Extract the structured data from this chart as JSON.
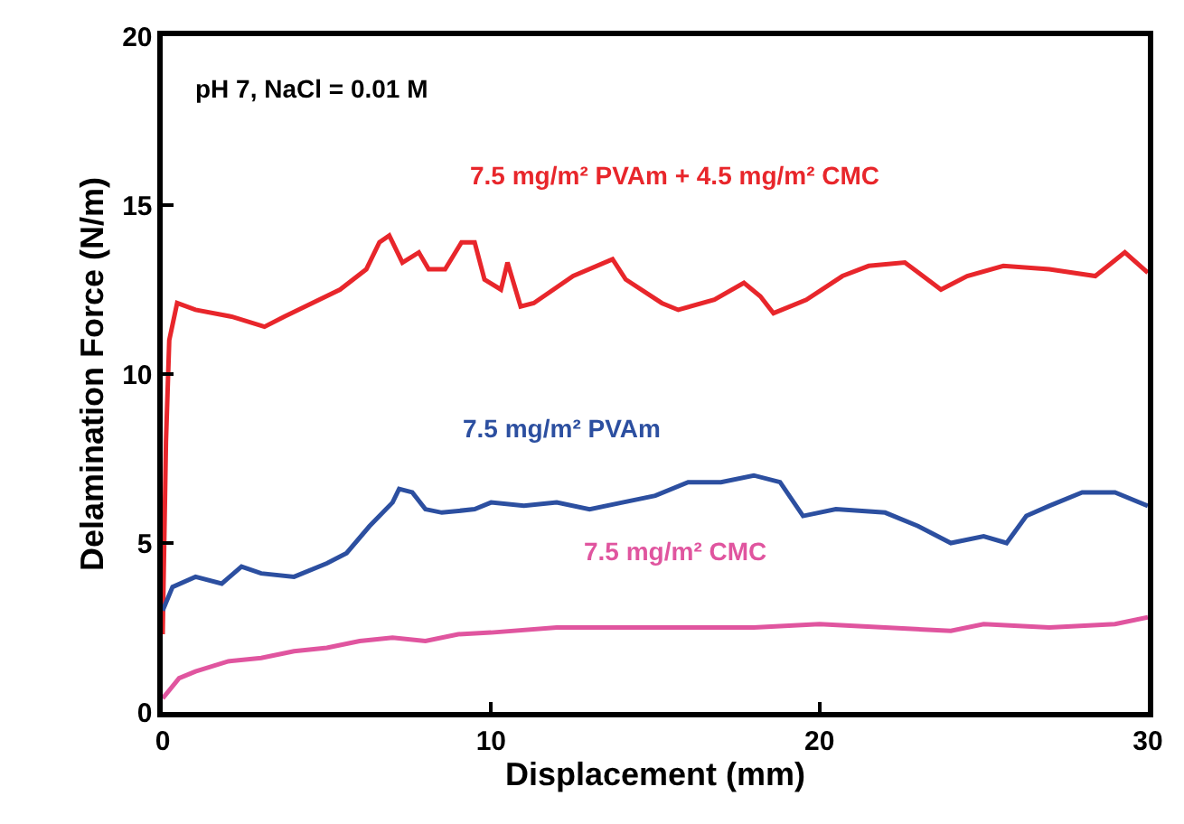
{
  "chart_data": {
    "type": "line",
    "xlabel": "Displacement (mm)",
    "ylabel": "Delamination Force (N/m)",
    "xlim": [
      0,
      30
    ],
    "xticks": [
      0,
      10,
      20,
      30
    ],
    "ylim": [
      0,
      20
    ],
    "yticks": [
      0,
      5,
      10,
      15,
      20
    ],
    "legend": false,
    "marker": "none",
    "line_style": "solid",
    "annotations": [
      "pH 7, NaCl = 0.01 M"
    ],
    "series": [
      {
        "name": "7.5 mg/m² PVAm + 4.5 mg/m² CMC",
        "color": "#e8262b",
        "x": [
          0,
          0.1,
          0.2,
          0.44,
          1,
          2.1,
          3.1,
          3.7,
          5.4,
          6.2,
          6.6,
          6.9,
          7.3,
          7.8,
          8.1,
          8.6,
          9.1,
          9.5,
          9.8,
          10.3,
          10.5,
          10.9,
          11.3,
          12.5,
          13.7,
          14.1,
          15.2,
          15.7,
          16.8,
          17.7,
          18.2,
          18.6,
          19.6,
          20.7,
          21.5,
          22.6,
          23.7,
          24.5,
          25.6,
          27,
          28.4,
          29.3,
          30
        ],
        "values": [
          2.3,
          8,
          11,
          12.1,
          11.9,
          11.7,
          11.4,
          11.7,
          12.5,
          13.1,
          13.9,
          14.1,
          13.3,
          13.6,
          13.1,
          13.1,
          13.9,
          13.9,
          12.8,
          12.5,
          13.3,
          12,
          12.1,
          12.9,
          13.4,
          12.8,
          12.1,
          11.9,
          12.2,
          12.7,
          12.3,
          11.8,
          12.2,
          12.9,
          13.2,
          13.3,
          12.5,
          12.9,
          13.2,
          13.1,
          12.9,
          13.6,
          13
        ]
      },
      {
        "name": "7.5 mg/m² PVAm",
        "color": "#2c4fa0",
        "x": [
          0,
          0.3,
          1,
          1.8,
          2.4,
          3,
          4,
          5,
          5.6,
          6.3,
          7,
          7.2,
          7.6,
          8,
          8.5,
          9.5,
          10,
          11,
          12,
          13,
          14,
          15,
          16,
          17,
          18,
          18.8,
          19.5,
          20.5,
          22,
          23,
          24,
          25,
          25.7,
          26.3,
          27,
          28,
          29,
          30
        ],
        "values": [
          3,
          3.7,
          4,
          3.8,
          4.3,
          4.1,
          4,
          4.4,
          4.7,
          5.5,
          6.2,
          6.6,
          6.5,
          6,
          5.9,
          6,
          6.2,
          6.1,
          6.2,
          6,
          6.2,
          6.4,
          6.8,
          6.8,
          7,
          6.8,
          5.8,
          6,
          5.9,
          5.5,
          5,
          5.2,
          5,
          5.8,
          6.1,
          6.5,
          6.5,
          6.1
        ]
      },
      {
        "name": "7.5 mg/m² CMC",
        "color": "#e0559f",
        "x": [
          0,
          0.5,
          1,
          2,
          3,
          4,
          5,
          6,
          7,
          8,
          9,
          10,
          12,
          14,
          16,
          18,
          20,
          22,
          24,
          25,
          27,
          29,
          30
        ],
        "values": [
          0.4,
          1,
          1.2,
          1.5,
          1.6,
          1.8,
          1.9,
          2.1,
          2.2,
          2.1,
          2.3,
          2.35,
          2.5,
          2.5,
          2.5,
          2.5,
          2.6,
          2.5,
          2.4,
          2.6,
          2.5,
          2.6,
          2.8
        ]
      }
    ]
  }
}
